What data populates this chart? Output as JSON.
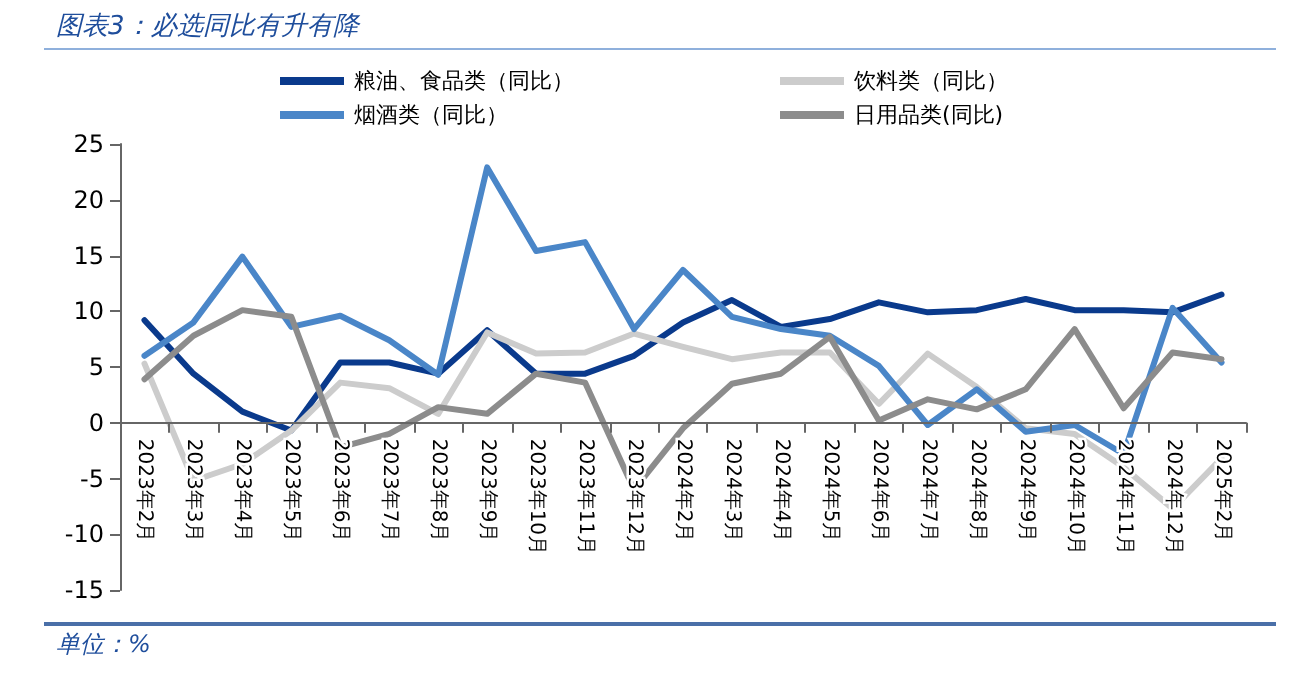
{
  "chart_data": {
    "type": "line",
    "title": "图表3：必选同比有升有降",
    "annotations": [
      "单位：%"
    ],
    "categories": [
      "2023年2月",
      "2023年3月",
      "2023年4月",
      "2023年5月",
      "2023年6月",
      "2023年7月",
      "2023年8月",
      "2023年9月",
      "2023年10月",
      "2023年11月",
      "2023年12月",
      "2024年2月",
      "2024年3月",
      "2024年4月",
      "2024年5月",
      "2024年6月",
      "2024年7月",
      "2024年8月",
      "2024年9月",
      "2024年10月",
      "2024年11月",
      "2024年12月",
      "2025年2月"
    ],
    "series": [
      {
        "name": "粮油、食品类（同比）",
        "color": "#0a3a8c",
        "values": [
          9.2,
          4.4,
          1.0,
          -0.7,
          5.4,
          5.4,
          4.4,
          8.3,
          4.4,
          4.4,
          6.0,
          9.0,
          11.0,
          8.6,
          9.3,
          10.8,
          9.9,
          10.1,
          11.1,
          10.1,
          10.1,
          9.9,
          11.5
        ]
      },
      {
        "name": "饮料类（同比）",
        "color": "#cccccc",
        "values": [
          5.3,
          -5.2,
          -3.7,
          -0.7,
          3.6,
          3.1,
          0.8,
          8.1,
          6.2,
          6.3,
          8.0,
          6.8,
          5.7,
          6.3,
          6.3,
          1.7,
          6.2,
          3.2,
          -0.5,
          -1.0,
          -4.0,
          -7.7,
          -3.2
        ]
      },
      {
        "name": "烟酒类（同比）",
        "color": "#4a86c8",
        "values": [
          6.0,
          9.0,
          14.9,
          8.6,
          9.6,
          7.4,
          4.3,
          22.9,
          15.4,
          16.2,
          8.4,
          13.7,
          9.5,
          8.4,
          7.8,
          5.1,
          -0.2,
          3.0,
          -0.8,
          -0.2,
          -2.8,
          10.3,
          5.4
        ]
      },
      {
        "name": "日用品类(同比)",
        "color": "#8c8c8c",
        "values": [
          3.9,
          7.8,
          10.1,
          9.5,
          -2.2,
          -1.0,
          1.4,
          0.8,
          4.4,
          3.6,
          -6.0,
          -0.5,
          3.5,
          4.4,
          7.7,
          0.2,
          2.1,
          1.2,
          3.0,
          8.4,
          1.3,
          6.3,
          5.7
        ]
      }
    ],
    "ylim": [
      -15,
      25
    ],
    "yticks": [
      -15,
      -10,
      -5,
      0,
      5,
      10,
      15,
      20,
      25
    ],
    "grid": false,
    "legend": "top",
    "marker": "none",
    "line_style": "solid"
  }
}
